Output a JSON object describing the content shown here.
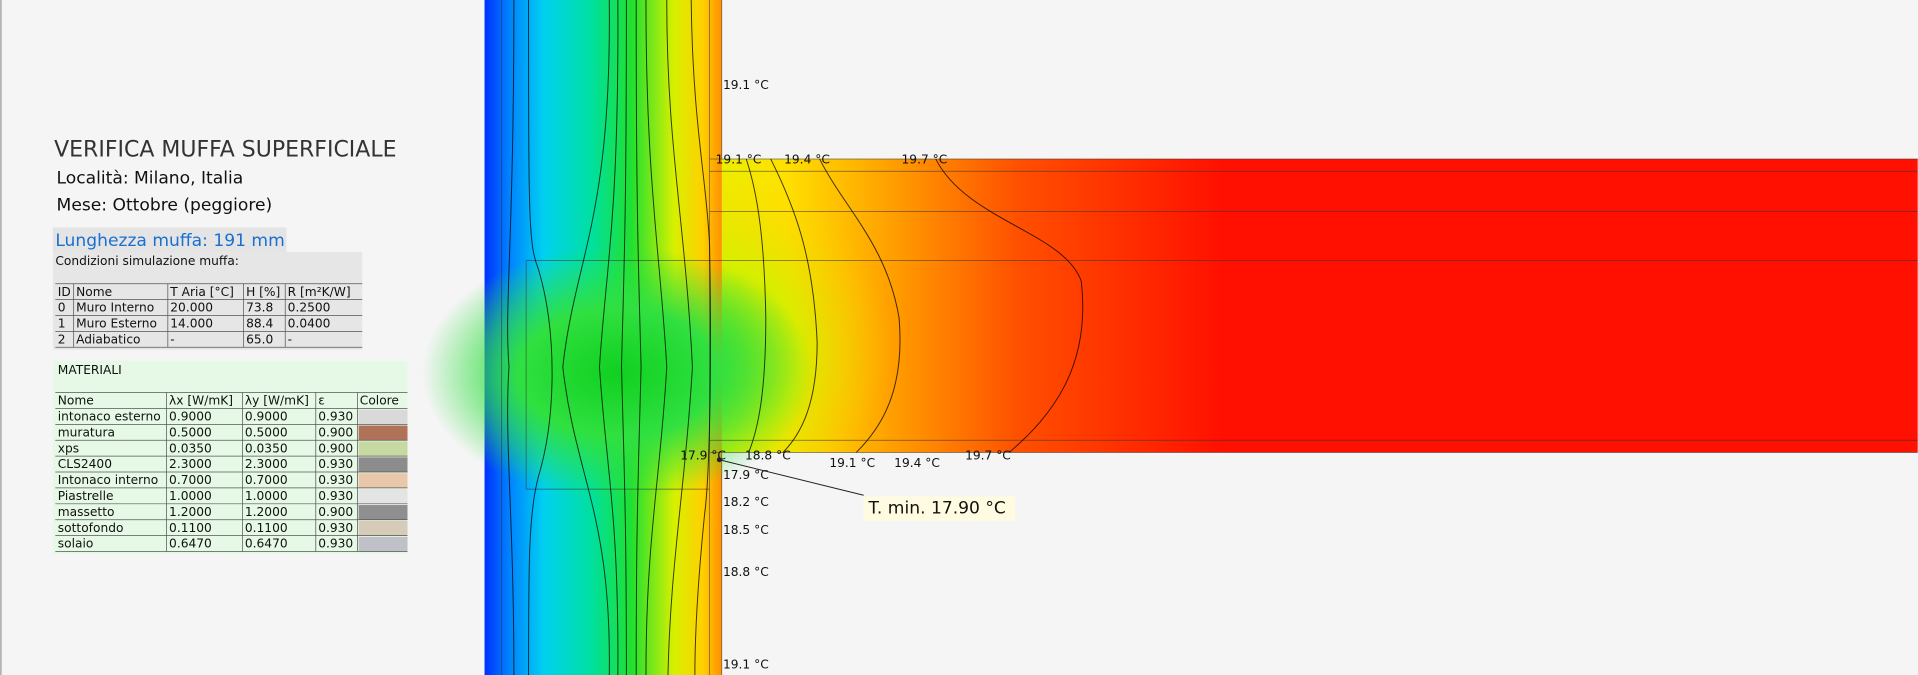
{
  "header": {
    "title": "VERIFICA MUFFA SUPERFICIALE",
    "location": "Località: Milano, Italia",
    "month": "Mese: Ottobre (peggiore)"
  },
  "mold_length": "Lunghezza muffa:  191 mm",
  "conditions": {
    "title": "Condizioni simulazione muffa:",
    "columns": [
      "ID",
      "Nome",
      "T Aria [°C]",
      "H [%]",
      "R [m²K/W]"
    ],
    "rows": [
      [
        "0",
        "Muro Interno",
        "20.000",
        "73.8",
        "0.2500"
      ],
      [
        "1",
        "Muro Esterno",
        "14.000",
        "88.4",
        "0.0400"
      ],
      [
        "2",
        "Adiabatico",
        "-",
        "65.0",
        "-"
      ]
    ]
  },
  "materials": {
    "title": "MATERIALI",
    "columns": [
      "Nome",
      "λx [W/mK]",
      "λy [W/mK]",
      "ε",
      "Colore"
    ],
    "rows": [
      {
        "name": "intonaco esterno",
        "lx": "0.9000",
        "ly": "0.9000",
        "eps": "0.930",
        "color": "#d9d9d9"
      },
      {
        "name": "muratura",
        "lx": "0.5000",
        "ly": "0.5000",
        "eps": "0.900",
        "color": "#b07258"
      },
      {
        "name": "xps",
        "lx": "0.0350",
        "ly": "0.0350",
        "eps": "0.900",
        "color": "#c6d9a0"
      },
      {
        "name": "CLS2400",
        "lx": "2.3000",
        "ly": "2.3000",
        "eps": "0.930",
        "color": "#8c8c8c"
      },
      {
        "name": "Intonaco interno",
        "lx": "0.7000",
        "ly": "0.7000",
        "eps": "0.930",
        "color": "#e8c8a8"
      },
      {
        "name": "Piastrelle",
        "lx": "1.0000",
        "ly": "1.0000",
        "eps": "0.930",
        "color": "#e4e4e4"
      },
      {
        "name": "massetto",
        "lx": "1.2000",
        "ly": "1.2000",
        "eps": "0.900",
        "color": "#8f8f8f"
      },
      {
        "name": "sottofondo",
        "lx": "0.1100",
        "ly": "0.1100",
        "eps": "0.930",
        "color": "#d6cbb8"
      },
      {
        "name": "solaio",
        "lx": "0.6470",
        "ly": "0.6470",
        "eps": "0.930",
        "color": "#c0c0c8"
      }
    ]
  },
  "temperature_labels": [
    "19.1 °C",
    "19.1 °C",
    "19.4 °C",
    "19.7 °C",
    "17.9 °C",
    "18.8 °C",
    "19.1 °C",
    "19.4 °C",
    "19.7 °C",
    "17.9 °C",
    "18.2 °C",
    "18.5 °C",
    "18.8 °C",
    "19.1 °C"
  ],
  "t_min": "T. min.  17.90  °C"
}
